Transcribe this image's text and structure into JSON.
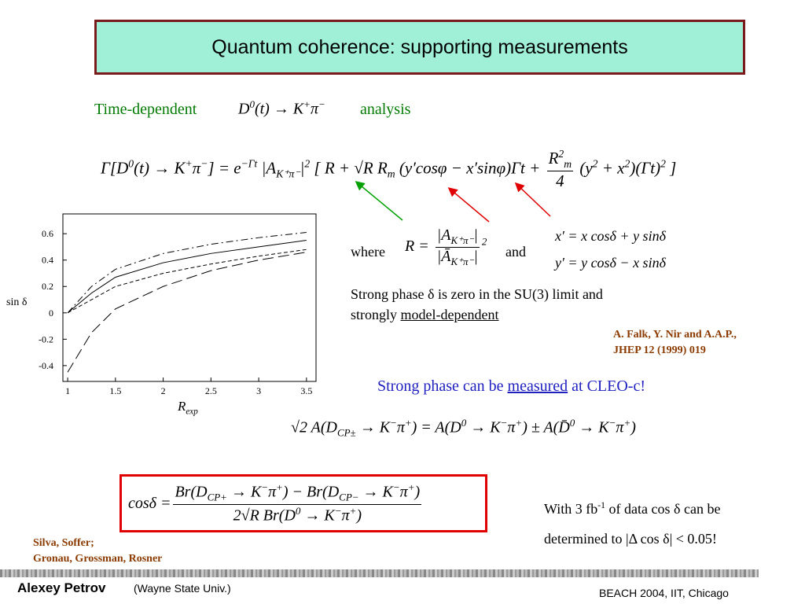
{
  "title": "Quantum coherence: supporting measurements",
  "intro": {
    "before": "Time-dependent",
    "formula": [
      "D",
      {
        "sup": "0"
      },
      "(t) → K",
      {
        "sup": "+"
      },
      "π",
      {
        "sup": "−"
      }
    ],
    "after": "analysis"
  },
  "rate_formula": [
    "Γ[D",
    {
      "sup": "0"
    },
    "(t) → K",
    {
      "sup": "+"
    },
    "π",
    {
      "sup": "−"
    },
    "] = e",
    {
      "sup": "−Γt"
    },
    " |A",
    {
      "sub": "K⁺π⁻"
    },
    "|",
    {
      "sup": "2"
    },
    " [ R + √R R",
    {
      "sub": "m"
    },
    " (y′cosφ − x′sinφ)Γt + ",
    {
      "frac": [
        [
          "R",
          {
            "sup": "2"
          },
          {
            "sub": "m"
          }
        ],
        [
          "4"
        ]
      ]
    },
    " (y",
    {
      "sup": "2"
    },
    " + x",
    {
      "sup": "2"
    },
    ")(Γt)",
    {
      "sup": "2"
    },
    " ]"
  ],
  "where": {
    "label": "where",
    "formula": [
      "R = ",
      {
        "frac": [
          [
            "|A",
            {
              "sub": "K⁺π⁻"
            },
            "|"
          ],
          [
            "|Ā",
            {
              "sub": "K⁺π⁻"
            },
            "|"
          ]
        ]
      },
      {
        "sup": "2"
      }
    ],
    "and": "and"
  },
  "primes": [
    [
      "x′ = x cosδ + y sinδ"
    ],
    [
      "y′ = y cosδ − x sinδ"
    ]
  ],
  "strong_phase_note": {
    "line1": "Strong phase δ is zero in the SU(3) limit and",
    "line2_before": "strongly ",
    "line2_underlined": "model-dependent"
  },
  "reference_falk": [
    "A. Falk, Y. Nir  and A.A.P.,",
    "JHEP 12 (1999)  019"
  ],
  "cleo": {
    "before": "Strong phase can be ",
    "underlined": "measured",
    "after": " at CLEO-c!"
  },
  "cp_formula": [
    "√2 A(D",
    {
      "sub": "CP±"
    },
    " → K",
    {
      "sup": "−"
    },
    "π",
    {
      "sup": "+"
    },
    ") = A(D",
    {
      "sup": "0"
    },
    " → K",
    {
      "sup": "−"
    },
    "π",
    {
      "sup": "+"
    },
    ") ± A(D̄",
    {
      "sup": "0"
    },
    " → K",
    {
      "sup": "−"
    },
    "π",
    {
      "sup": "+"
    },
    ")"
  ],
  "cos_formula": [
    "cosδ = ",
    {
      "frac": [
        [
          "Br(D",
          {
            "sub": "CP+"
          },
          " → K",
          {
            "sup": "−"
          },
          "π",
          {
            "sup": "+"
          },
          ") − Br(D",
          {
            "sub": "CP−"
          },
          " → K",
          {
            "sup": "−"
          },
          "π",
          {
            "sup": "+"
          },
          ")"
        ],
        [
          "2√R Br(D",
          {
            "sup": "0"
          },
          " → K",
          {
            "sup": "−"
          },
          "π",
          {
            "sup": "+"
          },
          ")"
        ]
      ]
    }
  ],
  "precision_note": [
    [
      "With 3 fb",
      {
        "sup": "-1"
      },
      " of data cos δ can be"
    ],
    [
      "determined to |Δ cos δ| < 0.05!"
    ]
  ],
  "reference_silva": [
    "Silva, Soffer;",
    "Gronau, Grossman, Rosner"
  ],
  "footer": {
    "author": "Alexey Petrov",
    "affiliation": "(Wayne State Univ.)",
    "event": "BEACH 2004, IIT, Chicago"
  },
  "chart_data": {
    "type": "line",
    "y_label": "sin δ",
    "x_label": [
      "R",
      {
        "sub": "exp"
      }
    ],
    "x": [
      1,
      1.25,
      1.5,
      2,
      2.5,
      3,
      3.5
    ],
    "series": [
      {
        "color": "#000000",
        "dash": "dashdot",
        "values": [
          0,
          0.2,
          0.33,
          0.45,
          0.52,
          0.57,
          0.61
        ]
      },
      {
        "color": "#000000",
        "dash": "solid",
        "values": [
          0,
          0.15,
          0.27,
          0.38,
          0.45,
          0.5,
          0.55
        ]
      },
      {
        "color": "#000000",
        "dash": "short",
        "values": [
          0,
          0.1,
          0.2,
          0.3,
          0.37,
          0.43,
          0.48
        ]
      },
      {
        "color": "#000000",
        "dash": "long",
        "values": [
          -0.45,
          -0.15,
          0.03,
          0.2,
          0.32,
          0.4,
          0.46
        ]
      }
    ],
    "xlim": [
      0.95,
      3.6
    ],
    "ylim": [
      -0.52,
      0.75
    ],
    "xticks": [
      1,
      1.5,
      2,
      2.5,
      3,
      3.5
    ],
    "yticks": [
      0.6,
      0.4,
      0.2,
      0,
      -0.2,
      -0.4
    ]
  }
}
